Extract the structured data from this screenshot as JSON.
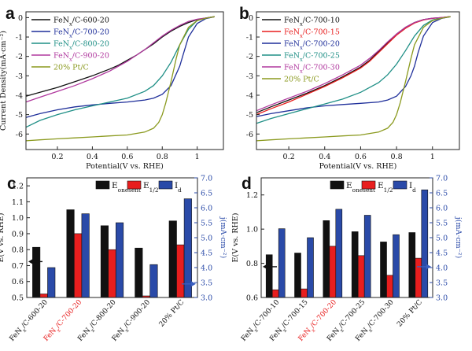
{
  "colors": {
    "black": "#111111",
    "red": "#e81e1e",
    "blue": "#2a4aa8",
    "navy": "#1f2f9a",
    "teal": "#1f8f86",
    "magenta": "#b0389e",
    "olive": "#8b9a1f",
    "arrow_blue": "#3a5fc0"
  },
  "chart_data": [
    {
      "panel": "a",
      "type": "line",
      "xlabel": "Potential(V vs. RHE)",
      "ylabel": "Current Density(mA·cm⁻²)",
      "xlim": [
        0.02,
        1.15
      ],
      "ylim": [
        -6.8,
        0.3
      ],
      "xticks": [
        0.2,
        0.4,
        0.6,
        0.8,
        1.0
      ],
      "yticks": [
        -6,
        -5,
        -4,
        -3,
        -2,
        -1,
        0
      ],
      "legend": {
        "position": "top-left"
      },
      "series": [
        {
          "label_pre": "FeN",
          "label_sub": "x",
          "label_post": "/C-600-20",
          "color": "#111111",
          "x": [
            0.02,
            0.1,
            0.2,
            0.3,
            0.4,
            0.5,
            0.55,
            0.6,
            0.65,
            0.7,
            0.75,
            0.8,
            0.85,
            0.9,
            0.95,
            1.0,
            1.05,
            1.1
          ],
          "y": [
            -4.05,
            -3.85,
            -3.6,
            -3.3,
            -3.0,
            -2.65,
            -2.45,
            -2.2,
            -1.95,
            -1.65,
            -1.35,
            -1.0,
            -0.7,
            -0.45,
            -0.25,
            -0.1,
            -0.02,
            0.05
          ]
        },
        {
          "label_pre": "FeN",
          "label_sub": "x",
          "label_post": "/C-700-20",
          "color": "#1f2f9a",
          "x": [
            0.02,
            0.1,
            0.2,
            0.3,
            0.4,
            0.5,
            0.6,
            0.7,
            0.75,
            0.8,
            0.85,
            0.9,
            0.92,
            0.95,
            1.0,
            1.05,
            1.1
          ],
          "y": [
            -5.15,
            -4.95,
            -4.75,
            -4.6,
            -4.5,
            -4.42,
            -4.35,
            -4.25,
            -4.15,
            -3.95,
            -3.5,
            -2.5,
            -1.9,
            -1.0,
            -0.3,
            -0.05,
            0.05
          ]
        },
        {
          "label_pre": "FeN",
          "label_sub": "x",
          "label_post": "/C-800-20",
          "color": "#1f8f86",
          "x": [
            0.02,
            0.1,
            0.2,
            0.3,
            0.4,
            0.5,
            0.6,
            0.7,
            0.75,
            0.8,
            0.85,
            0.9,
            0.95,
            1.0,
            1.05,
            1.1
          ],
          "y": [
            -5.65,
            -5.3,
            -5.0,
            -4.75,
            -4.55,
            -4.35,
            -4.15,
            -3.8,
            -3.5,
            -3.0,
            -2.3,
            -1.4,
            -0.6,
            -0.15,
            -0.02,
            0.05
          ]
        },
        {
          "label_pre": "FeN",
          "label_sub": "x",
          "label_post": "/C-900-20",
          "color": "#b0389e",
          "x": [
            0.02,
            0.1,
            0.2,
            0.3,
            0.4,
            0.5,
            0.55,
            0.6,
            0.65,
            0.7,
            0.75,
            0.8,
            0.85,
            0.9,
            0.95,
            1.0,
            1.05,
            1.1
          ],
          "y": [
            -4.35,
            -4.1,
            -3.8,
            -3.5,
            -3.15,
            -2.75,
            -2.5,
            -2.25,
            -1.95,
            -1.65,
            -1.3,
            -0.95,
            -0.65,
            -0.4,
            -0.2,
            -0.08,
            -0.02,
            0.05
          ]
        },
        {
          "label_pre": "20% Pt/C",
          "label_sub": "",
          "label_post": "",
          "color": "#8b9a1f",
          "x": [
            0.02,
            0.1,
            0.2,
            0.3,
            0.4,
            0.5,
            0.6,
            0.7,
            0.75,
            0.78,
            0.8,
            0.82,
            0.85,
            0.88,
            0.9,
            0.95,
            1.0,
            1.05,
            1.1
          ],
          "y": [
            -6.35,
            -6.3,
            -6.25,
            -6.2,
            -6.15,
            -6.1,
            -6.05,
            -5.9,
            -5.7,
            -5.4,
            -5.0,
            -4.4,
            -3.3,
            -2.1,
            -1.4,
            -0.5,
            -0.15,
            -0.03,
            0.05
          ]
        }
      ]
    },
    {
      "panel": "b",
      "type": "line",
      "xlabel": "Potential(V vs. RHE)",
      "ylabel": "",
      "xlim": [
        0.02,
        1.15
      ],
      "ylim": [
        -6.8,
        0.3
      ],
      "xticks": [
        0.2,
        0.4,
        0.6,
        0.8,
        1.0
      ],
      "yticks": [
        -6,
        -5,
        -4,
        -3,
        -2,
        -1,
        0
      ],
      "legend": {
        "position": "top-left"
      },
      "series": [
        {
          "label_pre": "FeN",
          "label_sub": "x",
          "label_post": "/C-700-10",
          "color": "#111111",
          "x": [
            0.02,
            0.1,
            0.2,
            0.3,
            0.4,
            0.5,
            0.6,
            0.65,
            0.7,
            0.75,
            0.8,
            0.85,
            0.9,
            0.95,
            1.0,
            1.05,
            1.1
          ],
          "y": [
            -4.9,
            -4.6,
            -4.25,
            -3.9,
            -3.5,
            -3.05,
            -2.55,
            -2.2,
            -1.75,
            -1.3,
            -0.85,
            -0.5,
            -0.25,
            -0.1,
            -0.03,
            0.0,
            0.05
          ]
        },
        {
          "label_pre": "FeN",
          "label_sub": "x",
          "label_post": "/C-700-15",
          "color": "#e81e1e",
          "x": [
            0.02,
            0.1,
            0.2,
            0.3,
            0.4,
            0.5,
            0.6,
            0.65,
            0.7,
            0.75,
            0.8,
            0.85,
            0.9,
            0.95,
            1.0,
            1.05,
            1.1
          ],
          "y": [
            -5.0,
            -4.7,
            -4.35,
            -3.95,
            -3.55,
            -3.1,
            -2.6,
            -2.25,
            -1.8,
            -1.35,
            -0.9,
            -0.55,
            -0.28,
            -0.12,
            -0.04,
            0.0,
            0.05
          ]
        },
        {
          "label_pre": "FeN",
          "label_sub": "x",
          "label_post": "/C-700-20",
          "color": "#1f2f9a",
          "x": [
            0.02,
            0.1,
            0.2,
            0.3,
            0.4,
            0.5,
            0.6,
            0.7,
            0.75,
            0.8,
            0.85,
            0.88,
            0.9,
            0.92,
            0.95,
            1.0,
            1.05,
            1.1
          ],
          "y": [
            -5.1,
            -4.95,
            -4.8,
            -4.65,
            -4.55,
            -4.48,
            -4.42,
            -4.35,
            -4.25,
            -4.05,
            -3.55,
            -3.0,
            -2.5,
            -1.8,
            -0.95,
            -0.25,
            -0.04,
            0.05
          ]
        },
        {
          "label_pre": "FeN",
          "label_sub": "x",
          "label_post": "/C-700-25",
          "color": "#1f8f86",
          "x": [
            0.02,
            0.1,
            0.2,
            0.3,
            0.4,
            0.5,
            0.6,
            0.7,
            0.75,
            0.8,
            0.85,
            0.9,
            0.95,
            1.0,
            1.05,
            1.1
          ],
          "y": [
            -5.45,
            -5.2,
            -4.95,
            -4.7,
            -4.45,
            -4.2,
            -3.85,
            -3.35,
            -2.95,
            -2.4,
            -1.7,
            -0.95,
            -0.4,
            -0.12,
            -0.02,
            0.05
          ]
        },
        {
          "label_pre": "FeN",
          "label_sub": "x",
          "label_post": "/C-700-30",
          "color": "#b0389e",
          "x": [
            0.02,
            0.1,
            0.2,
            0.3,
            0.4,
            0.5,
            0.6,
            0.65,
            0.7,
            0.75,
            0.8,
            0.85,
            0.9,
            0.95,
            1.0,
            1.05,
            1.1
          ],
          "y": [
            -4.8,
            -4.5,
            -4.15,
            -3.8,
            -3.4,
            -2.95,
            -2.45,
            -2.1,
            -1.7,
            -1.25,
            -0.85,
            -0.5,
            -0.25,
            -0.1,
            -0.03,
            0.0,
            0.05
          ]
        },
        {
          "label_pre": "20% Pt/C",
          "label_sub": "",
          "label_post": "",
          "color": "#8b9a1f",
          "x": [
            0.02,
            0.1,
            0.2,
            0.3,
            0.4,
            0.5,
            0.6,
            0.7,
            0.75,
            0.78,
            0.8,
            0.82,
            0.85,
            0.88,
            0.9,
            0.95,
            1.0,
            1.05,
            1.1
          ],
          "y": [
            -6.35,
            -6.3,
            -6.25,
            -6.2,
            -6.15,
            -6.1,
            -6.05,
            -5.9,
            -5.7,
            -5.4,
            -5.0,
            -4.4,
            -3.3,
            -2.1,
            -1.4,
            -0.5,
            -0.15,
            -0.03,
            0.05
          ]
        }
      ]
    },
    {
      "panel": "c",
      "type": "bar",
      "ylabel": "E(V vs. RHE)",
      "ylabel_right": "j(mA·cm⁻²)",
      "ylim": [
        0.5,
        1.25
      ],
      "yticks": [
        0.5,
        0.6,
        0.7,
        0.8,
        0.9,
        1.0,
        1.1,
        1.2
      ],
      "ylim_right": [
        3.0,
        7.0
      ],
      "yticks_right": [
        3.0,
        3.5,
        4.0,
        4.5,
        5.0,
        5.5,
        6.0,
        6.5,
        7.0
      ],
      "categories": [
        {
          "pre": "FeN",
          "sub": "x",
          "post": "/C-600-20",
          "highlight": false
        },
        {
          "pre": "FeN",
          "sub": "x",
          "post": "/C-700-20",
          "highlight": true
        },
        {
          "pre": "FeN",
          "sub": "x",
          "post": "/C-800-20",
          "highlight": false
        },
        {
          "pre": "FeN",
          "sub": "x",
          "post": "/C-900-20",
          "highlight": false
        },
        {
          "pre": "20% Pt/C",
          "sub": "",
          "post": "",
          "highlight": false
        }
      ],
      "legend": {
        "position": "top",
        "entries": [
          {
            "pre": "E",
            "sub": "onesent",
            "color": "#111111"
          },
          {
            "pre": "E",
            "sub": "1/2",
            "color": "#e81e1e"
          },
          {
            "pre": "I",
            "sub": "d",
            "color": "#2a4aa8"
          }
        ]
      },
      "series": [
        {
          "key": "E_onset",
          "axis": "left",
          "color": "#111111",
          "values": [
            0.815,
            1.05,
            0.95,
            0.81,
            0.98
          ]
        },
        {
          "key": "E_half",
          "axis": "left",
          "color": "#e81e1e",
          "values": [
            0.522,
            0.9,
            0.8,
            0.51,
            0.83
          ]
        },
        {
          "key": "I_d",
          "axis": "right",
          "color": "#2a4aa8",
          "values": [
            4.0,
            5.8,
            5.5,
            4.1,
            6.3
          ]
        }
      ]
    },
    {
      "panel": "d",
      "type": "bar",
      "ylabel": "E(V vs. RHE)",
      "ylabel_right": "j(mA·cm⁻²)",
      "ylim": [
        0.6,
        1.3
      ],
      "yticks": [
        0.6,
        0.8,
        1.0,
        1.2
      ],
      "ylim_right": [
        3.0,
        7.0
      ],
      "yticks_right": [
        3.0,
        3.5,
        4.0,
        4.5,
        5.0,
        5.5,
        6.0,
        6.5,
        7.0
      ],
      "categories": [
        {
          "pre": "FeN",
          "sub": "x",
          "post": "/C-700-10",
          "highlight": false
        },
        {
          "pre": "FeN",
          "sub": "x",
          "post": "/C-700-15",
          "highlight": false
        },
        {
          "pre": "FeN",
          "sub": "x",
          "post": "/C-700-20",
          "highlight": true
        },
        {
          "pre": "FeN",
          "sub": "x",
          "post": "/C-700-25",
          "highlight": false
        },
        {
          "pre": "FeN",
          "sub": "x",
          "post": "/C-700-30",
          "highlight": false
        },
        {
          "pre": "20% Pt/C",
          "sub": "",
          "post": "",
          "highlight": false
        }
      ],
      "legend": {
        "position": "top",
        "entries": [
          {
            "pre": "E",
            "sub": "onesent",
            "color": "#111111"
          },
          {
            "pre": "E",
            "sub": "1/2",
            "color": "#e81e1e"
          },
          {
            "pre": "I",
            "sub": "d",
            "color": "#2a4aa8"
          }
        ]
      },
      "series": [
        {
          "key": "E_onset",
          "axis": "left",
          "color": "#111111",
          "values": [
            0.85,
            0.86,
            1.05,
            0.985,
            0.925,
            0.98
          ]
        },
        {
          "key": "E_half",
          "axis": "left",
          "color": "#e81e1e",
          "values": [
            0.645,
            0.65,
            0.9,
            0.845,
            0.73,
            0.83
          ]
        },
        {
          "key": "I_d",
          "axis": "right",
          "color": "#2a4aa8",
          "values": [
            5.3,
            5.0,
            5.95,
            5.75,
            5.1,
            6.6
          ]
        }
      ]
    }
  ]
}
